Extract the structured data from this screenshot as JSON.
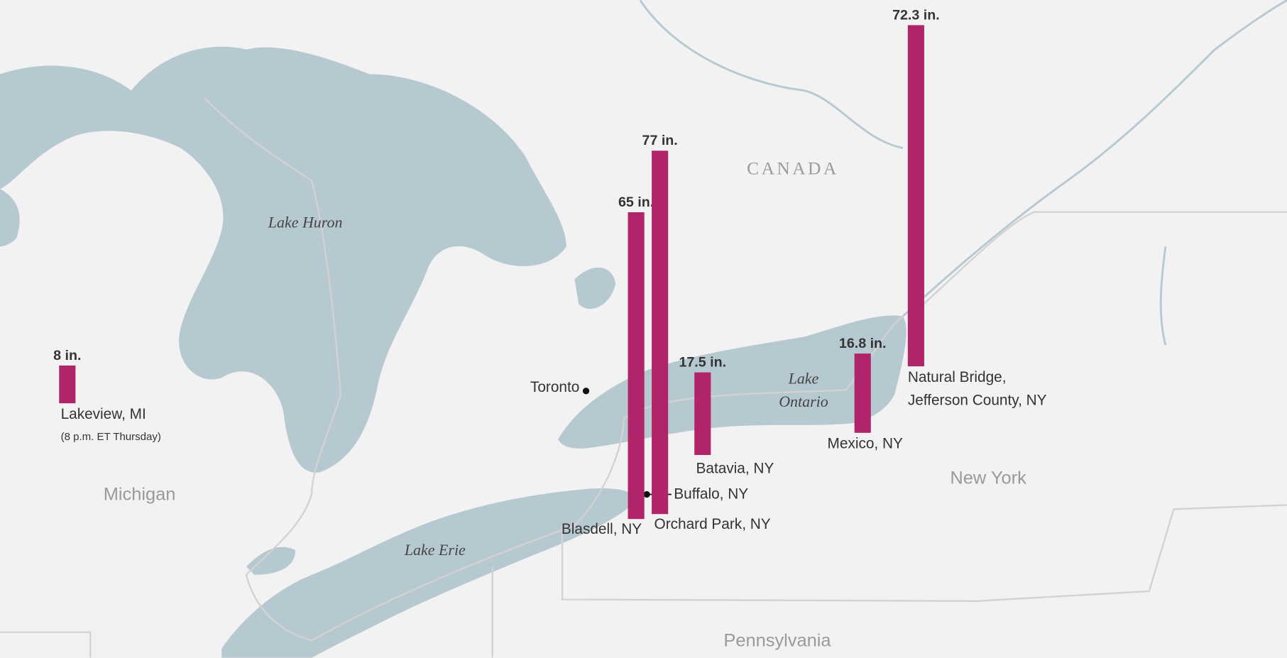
{
  "map": {
    "labels": {
      "country": "CANADA",
      "lake_huron": "Lake Huron",
      "michigan": "Michigan",
      "lake_ontario": [
        "Lake",
        "Ontario"
      ],
      "lake_erie": "Lake Erie",
      "new_york": "New York",
      "pennsylvania": "Pennsylvania",
      "toronto": "Toronto",
      "buffalo": "Buffalo, NY"
    }
  },
  "snowfall": {
    "color": "#b0246a",
    "locations": [
      [
        "Lakeview, MI"
      ],
      [
        "Blasdell, NY"
      ],
      [
        "Orchard Park, NY"
      ],
      [
        "Batavia, NY"
      ],
      [
        "Mexico, NY"
      ],
      [
        "Natural Bridge,",
        "Jefferson County, NY"
      ]
    ],
    "values": [
      8,
      65,
      77,
      17.5,
      16.8,
      72.3
    ],
    "value_labels": [
      "8 in.",
      "65 in.",
      "77 in.",
      "17.5 in.",
      "16.8 in.",
      "72.3 in."
    ],
    "note": "(8 p.m. ET Thursday)"
  }
}
